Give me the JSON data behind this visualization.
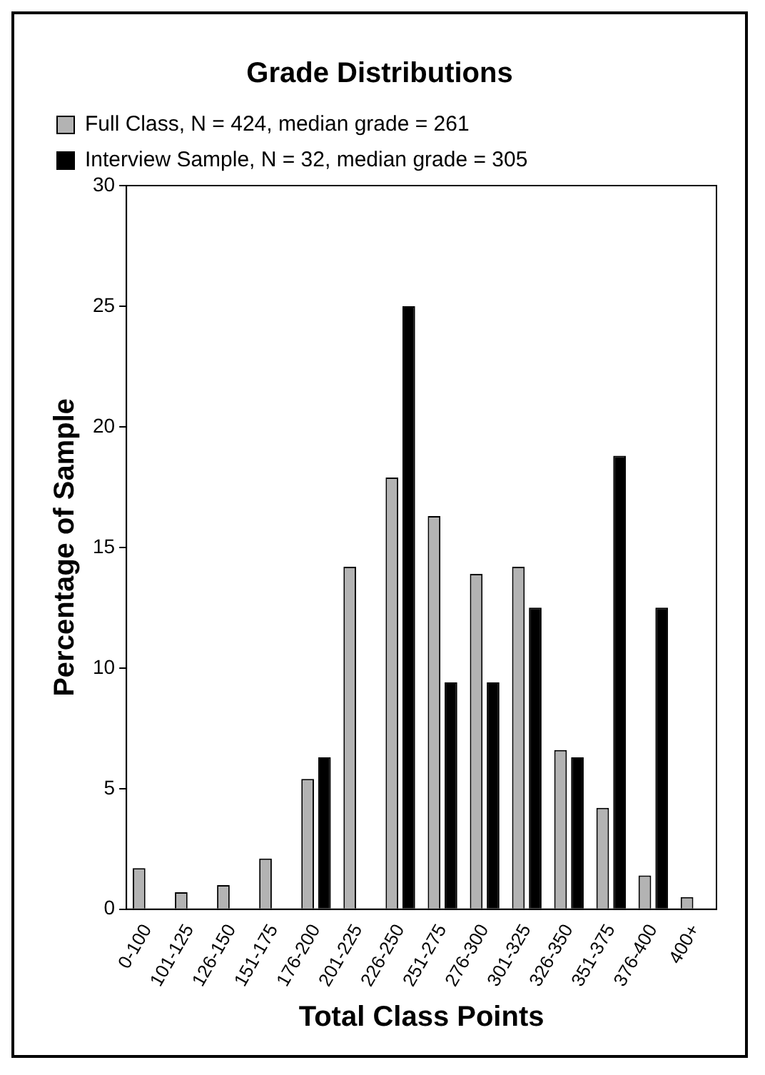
{
  "chart_data": {
    "type": "bar",
    "title": "Grade Distributions",
    "xlabel": "Total Class Points",
    "ylabel": "Percentage of Sample",
    "categories": [
      "0-100",
      "101-125",
      "126-150",
      "151-175",
      "176-200",
      "201-225",
      "226-250",
      "251-275",
      "276-300",
      "301-325",
      "326-350",
      "351-375",
      "376-400",
      "400+"
    ],
    "series": [
      {
        "name": "Full Class, N = 424, median grade = 261",
        "color": "#b3b3b3",
        "values": [
          1.7,
          0.7,
          1.0,
          2.1,
          5.4,
          14.2,
          17.9,
          16.3,
          13.9,
          14.2,
          6.6,
          4.2,
          1.4,
          0.5
        ]
      },
      {
        "name": "Interview Sample, N = 32, median grade = 305",
        "color": "#000000",
        "values": [
          0,
          0,
          0,
          0,
          6.3,
          0,
          25,
          9.4,
          9.4,
          12.5,
          6.3,
          18.8,
          12.5,
          0
        ]
      }
    ],
    "ylim": [
      0,
      30
    ],
    "yticks": [
      0,
      5,
      10,
      15,
      20,
      25,
      30
    ],
    "grid": false,
    "legend": "top left"
  }
}
